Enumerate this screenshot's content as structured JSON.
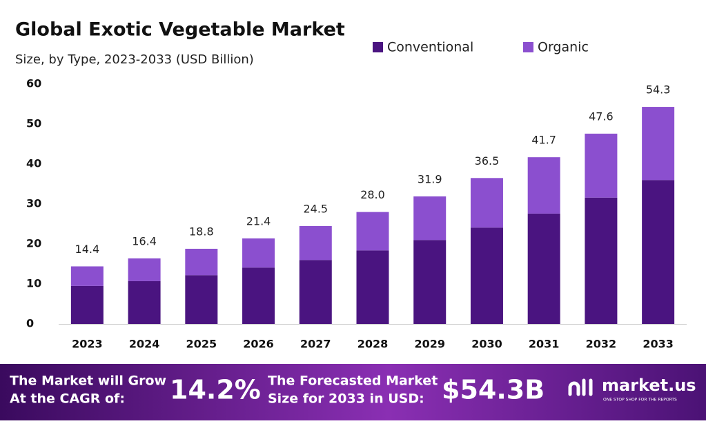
{
  "chart_data": {
    "type": "stacked_bar",
    "title": "Global Exotic Vegetable Market",
    "subtitle": "Size, by Type, 2023-2033 (USD Billion)",
    "categories": [
      "2023",
      "2024",
      "2025",
      "2026",
      "2027",
      "2028",
      "2029",
      "2030",
      "2031",
      "2032",
      "2033"
    ],
    "series": [
      {
        "name": "Conventional",
        "color": "#4a1480",
        "values": [
          9.5,
          10.7,
          12.2,
          14.1,
          16.0,
          18.4,
          21.0,
          24.1,
          27.6,
          31.6,
          36.0
        ]
      },
      {
        "name": "Organic",
        "color": "#8b4fcf",
        "values": [
          4.9,
          5.7,
          6.6,
          7.3,
          8.5,
          9.6,
          10.9,
          12.4,
          14.1,
          16.0,
          18.3
        ]
      }
    ],
    "total_labels": [
      "14.4",
      "16.4",
      "18.8",
      "21.4",
      "24.5",
      "28.0",
      "31.9",
      "36.5",
      "41.7",
      "47.6",
      "54.3"
    ],
    "ylim": [
      0,
      60
    ],
    "yticks": [
      0,
      10,
      20,
      30,
      40,
      50,
      60
    ],
    "grid": false,
    "legend": "top"
  },
  "footer": {
    "cagr_text": [
      "The Market will Grow",
      "At the CAGR of:"
    ],
    "cagr_value": "14.2%",
    "forecast_text": [
      "The Forecasted Market",
      "Size for 2033 in USD:"
    ],
    "forecast_value": "$54.3B",
    "brand": "market.us",
    "tagline": "ONE STOP SHOP FOR THE REPORTS"
  }
}
